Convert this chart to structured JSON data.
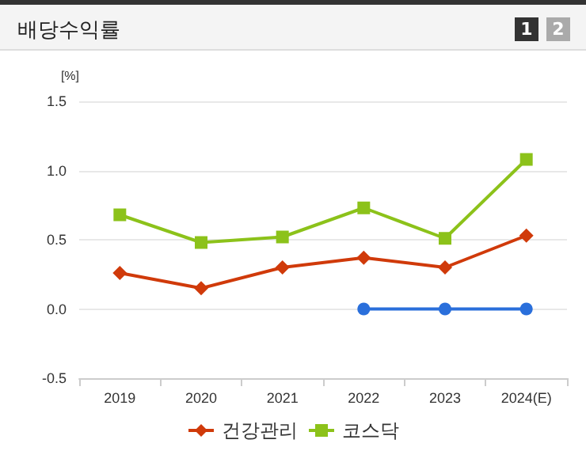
{
  "chart_data": {
    "type": "line",
    "title": "배당수익률",
    "ylabel": "[%]",
    "annotations": [
      "1",
      "2"
    ],
    "categories": [
      "2019",
      "2020",
      "2021",
      "2022",
      "2023",
      "2024(E)"
    ],
    "series": [
      {
        "color": "#2a6fdb",
        "marker": "circle",
        "values": [
          null,
          null,
          null,
          0,
          0,
          0
        ]
      },
      {
        "name": "건강관리",
        "color": "#d03a0a",
        "marker": "diamond",
        "values": [
          0.26,
          0.15,
          0.3,
          0.37,
          0.3,
          0.53
        ]
      },
      {
        "name": "코스닥",
        "color": "#8cc21a",
        "marker": "square",
        "values": [
          0.68,
          0.48,
          0.52,
          0.73,
          0.51,
          1.08
        ]
      }
    ],
    "ylim": [
      -0.5,
      1.5
    ],
    "yticks": [
      -0.5,
      {
        "value": 0,
        "label": "0.0"
      },
      0.5,
      {
        "value": 1,
        "label": "1.0"
      },
      1.5
    ],
    "grid": "y",
    "legend": "bottom"
  }
}
